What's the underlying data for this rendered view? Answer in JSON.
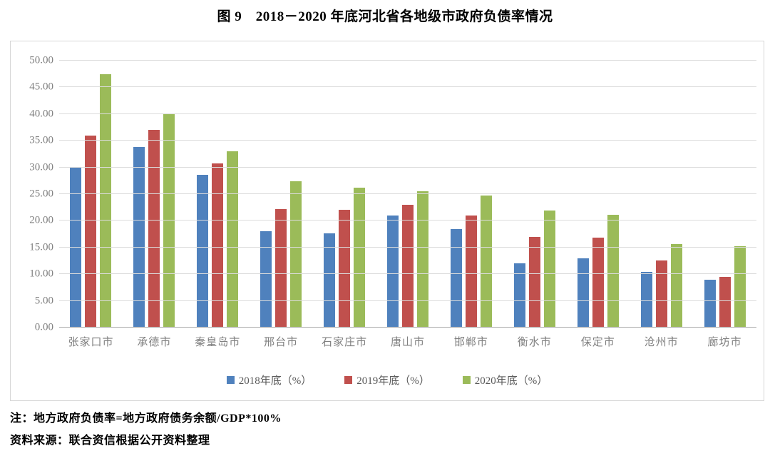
{
  "title": "图 9　2018－2020 年底河北省各地级市政府负债率情况",
  "notes": {
    "formula": "注：地方政府负债率=地方政府债务余额/GDP*100%",
    "source": "资料来源：联合资信根据公开资料整理"
  },
  "colors": {
    "series_2018": "#4F81BD",
    "series_2019": "#C0504D",
    "series_2020": "#9BBB59",
    "gridline": "#DCDCDC",
    "axis_line": "#A6A6A6",
    "tick_text": "#808080",
    "legend_text": "#595959"
  },
  "chart_data": {
    "type": "bar",
    "title": "图 9　2018－2020 年底河北省各地级市政府负债率情况",
    "categories": [
      "张家口市",
      "承德市",
      "秦皇岛市",
      "邢台市",
      "石家庄市",
      "唐山市",
      "邯郸市",
      "衡水市",
      "保定市",
      "沧州市",
      "廊坊市"
    ],
    "series": [
      {
        "name": "2018年底（%）",
        "color": "#4F81BD",
        "values": [
          30.0,
          33.8,
          28.6,
          18.1,
          17.7,
          21.0,
          18.4,
          12.0,
          13.0,
          10.4,
          9.0
        ]
      },
      {
        "name": "2019年底（%）",
        "color": "#C0504D",
        "values": [
          35.9,
          37.0,
          30.8,
          22.2,
          22.0,
          23.0,
          21.0,
          17.0,
          16.8,
          12.6,
          9.5
        ]
      },
      {
        "name": "2020年底（%）",
        "color": "#9BBB59",
        "values": [
          47.5,
          40.0,
          33.0,
          27.4,
          26.2,
          25.6,
          24.7,
          21.9,
          21.1,
          15.7,
          15.3
        ]
      }
    ],
    "xlabel": "",
    "ylabel": "",
    "ylim": [
      0,
      50
    ],
    "ytick_step": 5,
    "ytick_decimals": 2,
    "grid": true,
    "legend_position": "bottom"
  }
}
